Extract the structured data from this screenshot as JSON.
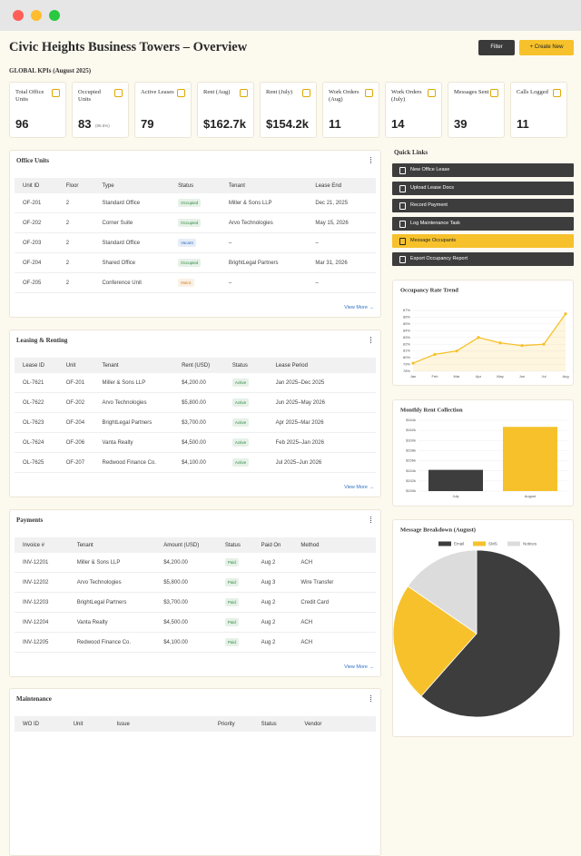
{
  "header": {
    "title": "Civic Heights Business Towers – Overview",
    "filter": "Filter",
    "create": "+ Create New"
  },
  "kpis": {
    "label": "GLOBAL KPIs (August 2025)",
    "items": [
      {
        "label": "Total Office Units",
        "value": "96"
      },
      {
        "label": "Occupied Units",
        "value": "83",
        "note": "(86.5%)"
      },
      {
        "label": "Active Leases",
        "value": "79"
      },
      {
        "label": "Rent (Aug)",
        "value": "$162.7k"
      },
      {
        "label": "Rent (July)",
        "value": "$154.2k"
      },
      {
        "label": "Work Orders (Aug)",
        "value": "11"
      },
      {
        "label": "Work Orders (July)",
        "value": "14"
      },
      {
        "label": "Messages Sent",
        "value": "39"
      },
      {
        "label": "Calls Logged",
        "value": "11"
      }
    ]
  },
  "tables": [
    {
      "title": "Office Units",
      "columns": [
        "Unit ID",
        "Floor",
        "Type",
        "Status",
        "Tenant",
        "Lease End"
      ],
      "rows": [
        [
          "OF-201",
          "2",
          "Standard Office",
          {
            "text": "Occupied",
            "color": "#2e8b3e"
          },
          "Miller & Sons LLP",
          "Dec 21, 2025"
        ],
        [
          "OF-202",
          "2",
          "Corner Suite",
          {
            "text": "Occupied",
            "color": "#2e8b3e"
          },
          "Arvo Technologies",
          "May 15, 2026"
        ],
        [
          "OF-203",
          "2",
          "Standard Office",
          {
            "text": "Vacant",
            "color": "#2f6fc0"
          },
          "–",
          "–"
        ],
        [
          "OF-204",
          "2",
          "Shared Office",
          {
            "text": "Occupied",
            "color": "#2e8b3e"
          },
          "BrightLegal Partners",
          "Mar 31, 2026"
        ],
        [
          "OF-205",
          "2",
          "Conference Unit",
          {
            "text": "Maint.",
            "color": "#d9822b"
          },
          "–",
          "–"
        ]
      ],
      "link": "View More →"
    },
    {
      "title": "Leasing & Renting",
      "columns": [
        "Lease ID",
        "Unit",
        "Tenant",
        "Rent (USD)",
        "Status",
        "Lease Period"
      ],
      "rows": [
        [
          "OL-7621",
          "OF-201",
          "Miller & Sons LLP",
          "$4,200.00",
          {
            "text": "Active",
            "color": "#2e8b3e"
          },
          "Jan 2025–Dec 2025"
        ],
        [
          "OL-7622",
          "OF-202",
          "Arvo Technologies",
          "$5,800.00",
          {
            "text": "Active",
            "color": "#2e8b3e"
          },
          "Jun 2025–May 2026"
        ],
        [
          "OL-7623",
          "OF-204",
          "BrightLegal Partners",
          "$3,700.00",
          {
            "text": "Active",
            "color": "#2e8b3e"
          },
          "Apr 2025–Mar 2026"
        ],
        [
          "OL-7624",
          "OF-206",
          "Vanta Realty",
          "$4,500.00",
          {
            "text": "Active",
            "color": "#2e8b3e"
          },
          "Feb 2025–Jan 2026"
        ],
        [
          "OL-7625",
          "OF-207",
          "Redwood Finance Co.",
          "$4,100.00",
          {
            "text": "Active",
            "color": "#2e8b3e"
          },
          "Jul 2025–Jun 2026"
        ]
      ],
      "link": "View More →"
    },
    {
      "title": "Payments",
      "columns": [
        "Invoice #",
        "Tenant",
        "Amount (USD)",
        "Status",
        "Paid On",
        "Method"
      ],
      "rows": [
        [
          "INV-12201",
          "Miller & Sons LLP",
          "$4,200.00",
          {
            "text": "Paid",
            "color": "#2e8b3e"
          },
          "Aug 2",
          "ACH"
        ],
        [
          "INV-12202",
          "Arvo Technologies",
          "$5,800.00",
          {
            "text": "Paid",
            "color": "#2e8b3e"
          },
          "Aug 3",
          "Wire Transfer"
        ],
        [
          "INV-12203",
          "BrightLegal Partners",
          "$3,700.00",
          {
            "text": "Paid",
            "color": "#2e8b3e"
          },
          "Aug 2",
          "Credit Card"
        ],
        [
          "INV-12204",
          "Vanta Realty",
          "$4,500.00",
          {
            "text": "Paid",
            "color": "#2e8b3e"
          },
          "Aug 2",
          "ACH"
        ],
        [
          "INV-12205",
          "Redwood Finance Co.",
          "$4,100.00",
          {
            "text": "Paid",
            "color": "#2e8b3e"
          },
          "Aug 2",
          "ACH"
        ]
      ],
      "link": "View More →"
    },
    {
      "title": "Maintenance",
      "columns": [
        "WO ID",
        "Unit",
        "Issue",
        "Priority",
        "Status",
        "Vendor"
      ],
      "rows": []
    }
  ],
  "quick_links": {
    "title": "Quick Links",
    "items": [
      {
        "label": "New Office Lease",
        "color": "#3d3d3d"
      },
      {
        "label": "Upload Lease Docs",
        "color": "#3d3d3d"
      },
      {
        "label": "Record Payment",
        "color": "#3d3d3d"
      },
      {
        "label": "Log Maintenance Task",
        "color": "#3d3d3d"
      },
      {
        "label": "Message Occupants",
        "color": "#f6c12b"
      },
      {
        "label": "Export Occupancy Report",
        "color": "#3d3d3d"
      }
    ]
  },
  "chart_data": [
    {
      "type": "line",
      "title": "Occupancy Rate Trend",
      "categories": [
        "Jan",
        "Feb",
        "Mar",
        "Apr",
        "May",
        "Jun",
        "Jul",
        "Aug"
      ],
      "values": [
        79.2,
        80.5,
        81,
        83,
        82.2,
        81.8,
        82,
        86.5
      ],
      "color": "#f6c12b",
      "ylim": [
        78,
        87
      ],
      "yticks": [
        {
          "value": 78,
          "label": "78%"
        },
        {
          "value": 79,
          "label": "79%"
        },
        {
          "value": 80,
          "label": "80%"
        },
        {
          "value": 81,
          "label": "81%"
        },
        {
          "value": 82,
          "label": "82%"
        },
        {
          "value": 83,
          "label": "83%"
        },
        {
          "value": 84,
          "label": "84%"
        },
        {
          "value": 85,
          "label": "85%"
        },
        {
          "value": 86,
          "label": "86%"
        },
        {
          "value": 87,
          "label": "87%"
        }
      ],
      "grid": true
    },
    {
      "type": "bar",
      "title": "Monthly Rent Collection",
      "categories": [
        "July",
        "August"
      ],
      "values": [
        154.2,
        162.7
      ],
      "colors": [
        "#3d3d3d",
        "#f6c12b"
      ],
      "ylim": [
        150,
        164
      ],
      "yticks": [
        {
          "value": 150,
          "label": "$150k"
        },
        {
          "value": 152,
          "label": "$152k"
        },
        {
          "value": 154,
          "label": "$154k"
        },
        {
          "value": 156,
          "label": "$156k"
        },
        {
          "value": 158,
          "label": "$158k"
        },
        {
          "value": 160,
          "label": "$160k"
        },
        {
          "value": 162,
          "label": "$162k"
        },
        {
          "value": 164,
          "label": "$164k"
        }
      ],
      "grid": true
    },
    {
      "type": "pie",
      "title": "Message Breakdown (August)",
      "categories": [
        "Email",
        "SMS",
        "Notices"
      ],
      "values": [
        24,
        9,
        6
      ],
      "colors": [
        "#3d3d3d",
        "#f6c12b",
        "#dcdcdc"
      ]
    }
  ]
}
